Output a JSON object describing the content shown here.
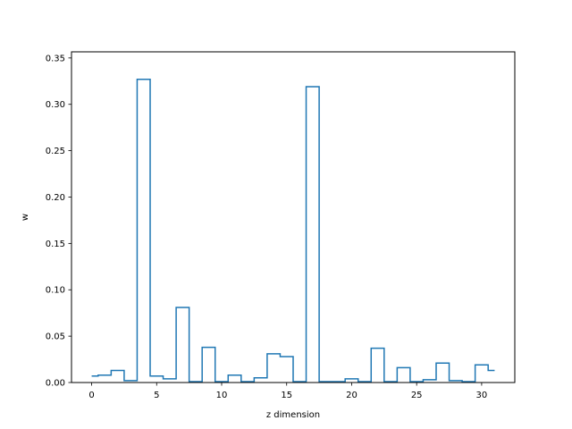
{
  "chart_data": {
    "type": "step",
    "title": "",
    "xlabel": "z dimension",
    "ylabel": "w",
    "xlim": [
      -1.55,
      32.55
    ],
    "ylim": [
      0,
      0.3566
    ],
    "xticks": [
      0,
      5,
      10,
      15,
      20,
      25,
      30
    ],
    "xtick_labels": [
      "0",
      "5",
      "10",
      "15",
      "20",
      "25",
      "30"
    ],
    "yticks": [
      0.0,
      0.05,
      0.1,
      0.15,
      0.2,
      0.25,
      0.3,
      0.35
    ],
    "ytick_labels": [
      "0.00",
      "0.05",
      "0.10",
      "0.15",
      "0.20",
      "0.25",
      "0.30",
      "0.35"
    ],
    "grid": false,
    "step_where": "mid",
    "x": [
      0,
      1,
      2,
      3,
      4,
      5,
      6,
      7,
      8,
      9,
      10,
      11,
      12,
      13,
      14,
      15,
      16,
      17,
      18,
      19,
      20,
      21,
      22,
      23,
      24,
      25,
      26,
      27,
      28,
      29,
      30,
      31
    ],
    "values": [
      0.007,
      0.008,
      0.013,
      0.002,
      0.327,
      0.007,
      0.004,
      0.081,
      0.001,
      0.038,
      0.001,
      0.008,
      0.001,
      0.005,
      0.031,
      0.028,
      0.001,
      0.319,
      0.001,
      0.001,
      0.004,
      0.001,
      0.037,
      0.001,
      0.016,
      0.001,
      0.003,
      0.021,
      0.002,
      0.001,
      0.019,
      0.013
    ],
    "color": "#1f77b4"
  }
}
